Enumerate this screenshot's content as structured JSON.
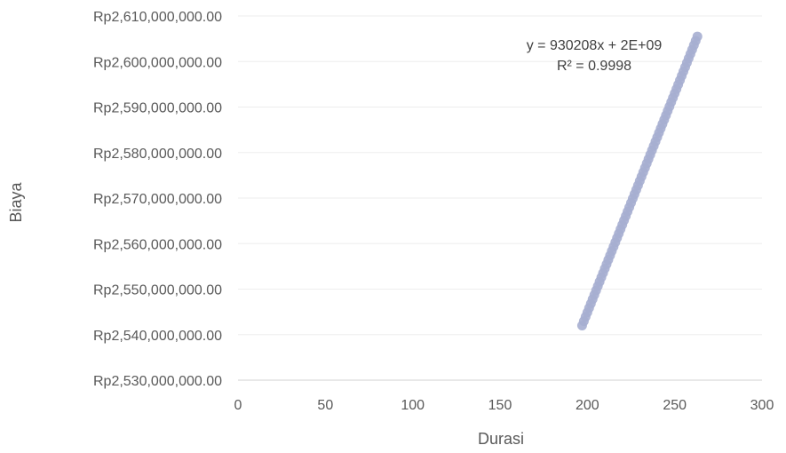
{
  "chart_data": {
    "type": "scatter",
    "title": "",
    "xlabel": "Durasi",
    "ylabel": "Biaya",
    "xlim": [
      0,
      300
    ],
    "ylim": [
      2530000000,
      2610000000
    ],
    "x_ticks": [
      0,
      50,
      100,
      150,
      200,
      250,
      300
    ],
    "x_tick_labels": [
      "0",
      "50",
      "100",
      "150",
      "200",
      "250",
      "300"
    ],
    "y_ticks": [
      2530000000,
      2540000000,
      2550000000,
      2560000000,
      2570000000,
      2580000000,
      2590000000,
      2600000000,
      2610000000
    ],
    "y_tick_labels": [
      "Rp2,530,000,000.00",
      "Rp2,540,000,000.00",
      "Rp2,550,000,000.00",
      "Rp2,560,000,000.00",
      "Rp2,570,000,000.00",
      "Rp2,580,000,000.00",
      "Rp2,590,000,000.00",
      "Rp2,600,000,000.00",
      "Rp2,610,000,000.00"
    ],
    "grid": true,
    "legend": "none",
    "marker_color": "#a6aed0",
    "series": [
      {
        "x_range": [
          197,
          263
        ],
        "y_range": [
          2542000000,
          2605500000
        ],
        "point_count": 67
      }
    ],
    "trendline": {
      "equation": "y = 930208x + 2E+09",
      "r_squared": "R² = 0.9998"
    }
  }
}
